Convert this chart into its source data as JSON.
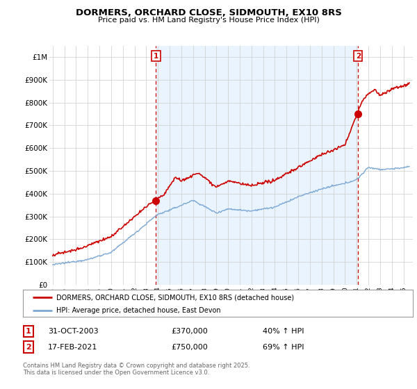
{
  "title": "DORMERS, ORCHARD CLOSE, SIDMOUTH, EX10 8RS",
  "subtitle": "Price paid vs. HM Land Registry's House Price Index (HPI)",
  "hpi_color": "#7ba7d4",
  "price_color": "#cc0000",
  "shade_color": "#ddeeff",
  "ylim": [
    0,
    1050000
  ],
  "yticks": [
    0,
    100000,
    200000,
    300000,
    400000,
    500000,
    600000,
    700000,
    800000,
    900000,
    1000000
  ],
  "ytick_labels": [
    "£0",
    "£100K",
    "£200K",
    "£300K",
    "£400K",
    "£500K",
    "£600K",
    "£700K",
    "£800K",
    "£900K",
    "£1M"
  ],
  "xlim_start": 1994.7,
  "xlim_end": 2025.8,
  "sale1_x": 2003.83,
  "sale1_y": 370000,
  "sale1_label": "1",
  "sale1_date": "31-OCT-2003",
  "sale1_price": "£370,000",
  "sale1_hpi": "40% ↑ HPI",
  "sale2_x": 2021.12,
  "sale2_y": 750000,
  "sale2_label": "2",
  "sale2_date": "17-FEB-2021",
  "sale2_price": "£750,000",
  "sale2_hpi": "69% ↑ HPI",
  "legend_label1": "DORMERS, ORCHARD CLOSE, SIDMOUTH, EX10 8RS (detached house)",
  "legend_label2": "HPI: Average price, detached house, East Devon",
  "footer": "Contains HM Land Registry data © Crown copyright and database right 2025.\nThis data is licensed under the Open Government Licence v3.0.",
  "background_color": "#ffffff",
  "grid_color": "#cccccc",
  "annotation_color": "#cc0000"
}
